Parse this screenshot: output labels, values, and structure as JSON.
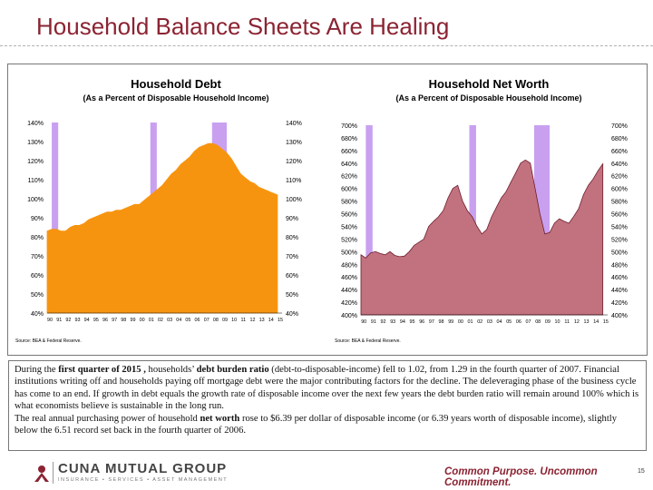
{
  "slide": {
    "title": "Household Balance Sheets Are Healing",
    "page_number": "15"
  },
  "colors": {
    "brand": "#8b2332",
    "debt_fill": "#f7940f",
    "networth_fill": "#c2727e",
    "recession_fill": "#c9a0f0",
    "networth_stroke": "#6e1d2d"
  },
  "chart_data": [
    {
      "type": "area",
      "title": "Household Debt",
      "subtitle": "(As a Percent of Disposable Household Income)",
      "source": "Source: BEA & Federal Reserve.",
      "ylim": [
        40,
        140
      ],
      "y_ticks": [
        "140%",
        "130%",
        "120%",
        "110%",
        "100%",
        "90%",
        "80%",
        "70%",
        "60%",
        "50%",
        "40%"
      ],
      "y_tick_values": [
        140,
        130,
        120,
        110,
        100,
        90,
        80,
        70,
        60,
        50,
        40
      ],
      "x_tick_labels": [
        "90",
        "91",
        "92",
        "93",
        "94",
        "95",
        "96",
        "97",
        "98",
        "99",
        "00",
        "01",
        "02",
        "03",
        "04",
        "05",
        "06",
        "07",
        "08",
        "09",
        "10",
        "11",
        "12",
        "13",
        "14",
        "15"
      ],
      "xlim": [
        1990,
        2015.5
      ],
      "recessions": [
        [
          1990.5,
          1991.2
        ],
        [
          2001.2,
          2001.9
        ],
        [
          2007.9,
          2009.5
        ]
      ],
      "series": [
        {
          "x": [
            1990,
            1990.5,
            1991,
            1991.5,
            1992,
            1992.5,
            1993,
            1993.5,
            1994,
            1994.5,
            1995,
            1995.5,
            1996,
            1996.5,
            1997,
            1997.5,
            1998,
            1998.5,
            1999,
            1999.5,
            2000,
            2000.5,
            2001,
            2001.5,
            2002,
            2002.5,
            2003,
            2003.5,
            2004,
            2004.5,
            2005,
            2005.5,
            2006,
            2006.5,
            2007,
            2007.5,
            2008,
            2008.5,
            2009,
            2009.5,
            2010,
            2010.5,
            2011,
            2011.5,
            2012,
            2012.5,
            2013,
            2013.5,
            2014,
            2014.5,
            2015
          ],
          "values": [
            83,
            84,
            84,
            83,
            83,
            85,
            86,
            86,
            87,
            89,
            90,
            91,
            92,
            93,
            93,
            94,
            94,
            95,
            96,
            97,
            97,
            99,
            101,
            103,
            105,
            107,
            110,
            113,
            115,
            118,
            120,
            122,
            125,
            127,
            128,
            129,
            129,
            128,
            126,
            124,
            121,
            117,
            113,
            111,
            109,
            108,
            106,
            105,
            104,
            103,
            102
          ]
        }
      ]
    },
    {
      "type": "area",
      "title": "Household Net Worth",
      "subtitle": "(As a Percent of Disposable Household Income)",
      "source": "Source: BEA & Federal Reserve.",
      "ylim": [
        400,
        700
      ],
      "y_ticks": [
        "700%",
        "680%",
        "660%",
        "640%",
        "620%",
        "600%",
        "580%",
        "560%",
        "540%",
        "520%",
        "500%",
        "480%",
        "460%",
        "440%",
        "420%",
        "400%"
      ],
      "y_tick_values": [
        700,
        680,
        660,
        640,
        620,
        600,
        580,
        560,
        540,
        520,
        500,
        480,
        460,
        440,
        420,
        400
      ],
      "x_tick_labels": [
        "90",
        "91",
        "92",
        "93",
        "94",
        "95",
        "96",
        "97",
        "98",
        "99",
        "00",
        "01",
        "02",
        "03",
        "04",
        "05",
        "06",
        "07",
        "08",
        "09",
        "10",
        "11",
        "12",
        "13",
        "14",
        "15"
      ],
      "xlim": [
        1990,
        2015.5
      ],
      "recessions": [
        [
          1990.5,
          1991.2
        ],
        [
          2001.2,
          2001.9
        ],
        [
          2007.9,
          2009.5
        ]
      ],
      "series": [
        {
          "x": [
            1990,
            1990.5,
            1991,
            1991.5,
            1992,
            1992.5,
            1993,
            1993.5,
            1994,
            1994.5,
            1995,
            1995.5,
            1996,
            1996.5,
            1997,
            1997.5,
            1998,
            1998.5,
            1999,
            1999.5,
            2000,
            2000.5,
            2001,
            2001.5,
            2002,
            2002.5,
            2003,
            2003.5,
            2004,
            2004.5,
            2005,
            2005.5,
            2006,
            2006.5,
            2007,
            2007.5,
            2008,
            2008.5,
            2009,
            2009.5,
            2010,
            2010.5,
            2011,
            2011.5,
            2012,
            2012.5,
            2013,
            2013.5,
            2014,
            2014.5,
            2015
          ],
          "values": [
            495,
            490,
            498,
            500,
            497,
            495,
            500,
            494,
            492,
            493,
            500,
            510,
            515,
            520,
            540,
            548,
            555,
            565,
            585,
            600,
            605,
            580,
            565,
            555,
            540,
            528,
            535,
            555,
            570,
            585,
            595,
            610,
            625,
            640,
            645,
            640,
            600,
            560,
            528,
            530,
            545,
            552,
            548,
            545,
            556,
            568,
            590,
            605,
            615,
            628,
            639
          ]
        }
      ]
    }
  ],
  "narrative": {
    "p1_a": "During the ",
    "p1_b": "first quarter of 2015 ,",
    "p1_c": " households’ ",
    "p1_d": "debt burden ratio",
    "p1_e": " (debt-to-disposable-income) fell to 1.02, from 1.29 in the fourth quarter of 2007.  Financial institutions writing off and households paying off mortgage debt were the major contributing factors for the decline. The deleveraging phase of the business cycle has come to an end. If growth in debt equals the growth rate of disposable income over the next few years the debt burden ratio will remain around 100% which is what economists believe is sustainable in the long run.",
    "p2_a": "The real annual purchasing power of household ",
    "p2_b": "net worth",
    "p2_c": " rose to $6.39 per dollar of disposable income (or 6.39 years worth of disposable income), slightly below the 6.51 record set back in the fourth quarter of 2006."
  },
  "footer": {
    "company": "CUNA MUTUAL GROUP",
    "company_tagline": "INSURANCE • SERVICES • ASSET MANAGEMENT",
    "slogan": "Common Purpose. Uncommon Commitment."
  }
}
